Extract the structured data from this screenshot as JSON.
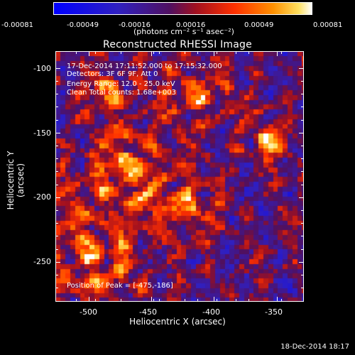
{
  "colorbar": {
    "ticks": [
      "-0.00081",
      "-0.00049",
      "-0.00016",
      "0.00016",
      "0.00049",
      "0.00081"
    ],
    "unit": "(photons cm⁻² s⁻¹ asec⁻²)"
  },
  "title": "Reconstructed RHESSI Image",
  "info": {
    "time_range": "17-Dec-2014 17:11:52.000 to 17:15:32.000",
    "detectors": "Detectors: 3F 6F 9F, Att 0",
    "energy": "Energy Range: 12.0 - 25.0 keV",
    "clean": "Clean     Total counts: 1.68e+003"
  },
  "peak": "Position of Peak = [-475,-186]",
  "axes": {
    "xlabel": "Heliocentric X (arcsec)",
    "ylabel": "Heliocentric Y (arcsec)",
    "xticks": [
      "-500",
      "-450",
      "-400",
      "-350"
    ],
    "yticks": [
      "-100",
      "-150",
      "-200",
      "-250"
    ]
  },
  "footer": "18-Dec-2014 18:17"
}
